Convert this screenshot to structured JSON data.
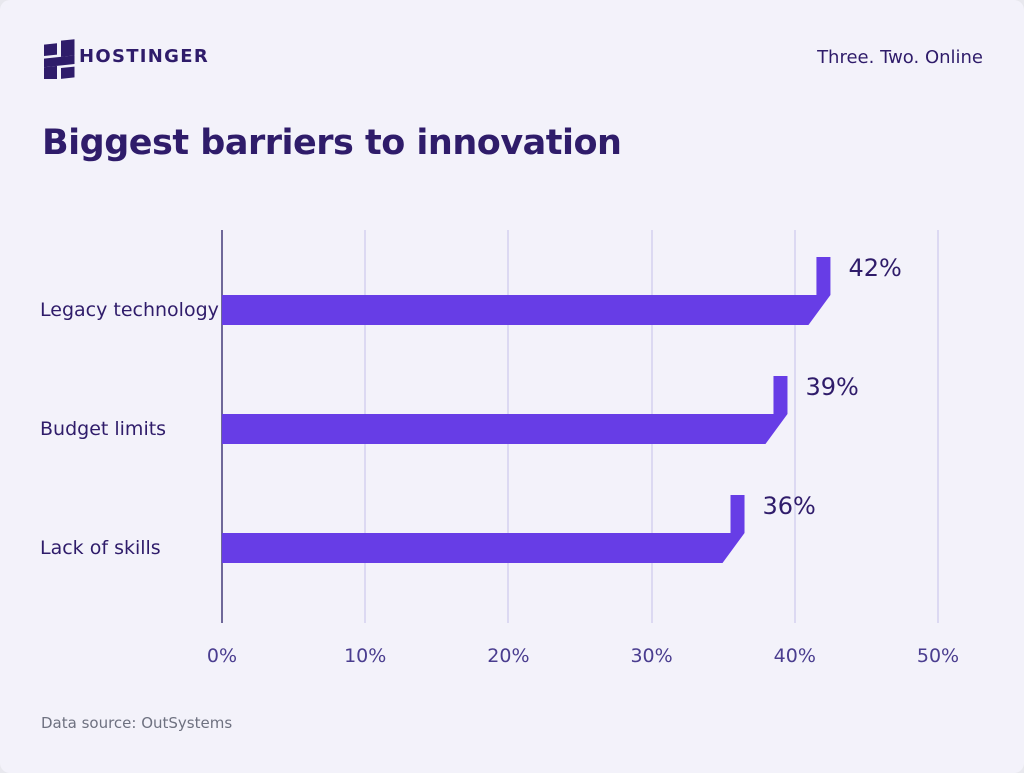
{
  "header": {
    "brand": "HOSTINGER",
    "tagline": "Three. Two. Online",
    "logo_icon": "hostinger-h-icon"
  },
  "title": "Biggest barriers to innovation",
  "footer": {
    "source": "Data source: OutSystems"
  },
  "colors": {
    "background": "#F3F2FA",
    "bar": "#673DE6",
    "text_dark": "#2F1C6A",
    "gridline": "#DCD9F2",
    "axis_zero_line": "#6F6899",
    "tick_label": "#4A3D8F",
    "source_text": "#6E7180"
  },
  "chart_data": {
    "type": "bar",
    "orientation": "horizontal",
    "title": "Biggest barriers to innovation",
    "categories": [
      "Legacy technology",
      "Budget limits",
      "Lack of skills"
    ],
    "values": [
      42,
      39,
      36
    ],
    "value_labels": [
      "42%",
      "39%",
      "36%"
    ],
    "x_ticks": [
      "0%",
      "10%",
      "20%",
      "30%",
      "40%",
      "50%"
    ],
    "x_tick_values": [
      0,
      10,
      20,
      30,
      40,
      50
    ],
    "xlim": [
      0,
      50
    ],
    "xlabel": "",
    "ylabel": "",
    "grid": "vertical-only",
    "legend": "none",
    "source": "Data source: OutSystems"
  }
}
